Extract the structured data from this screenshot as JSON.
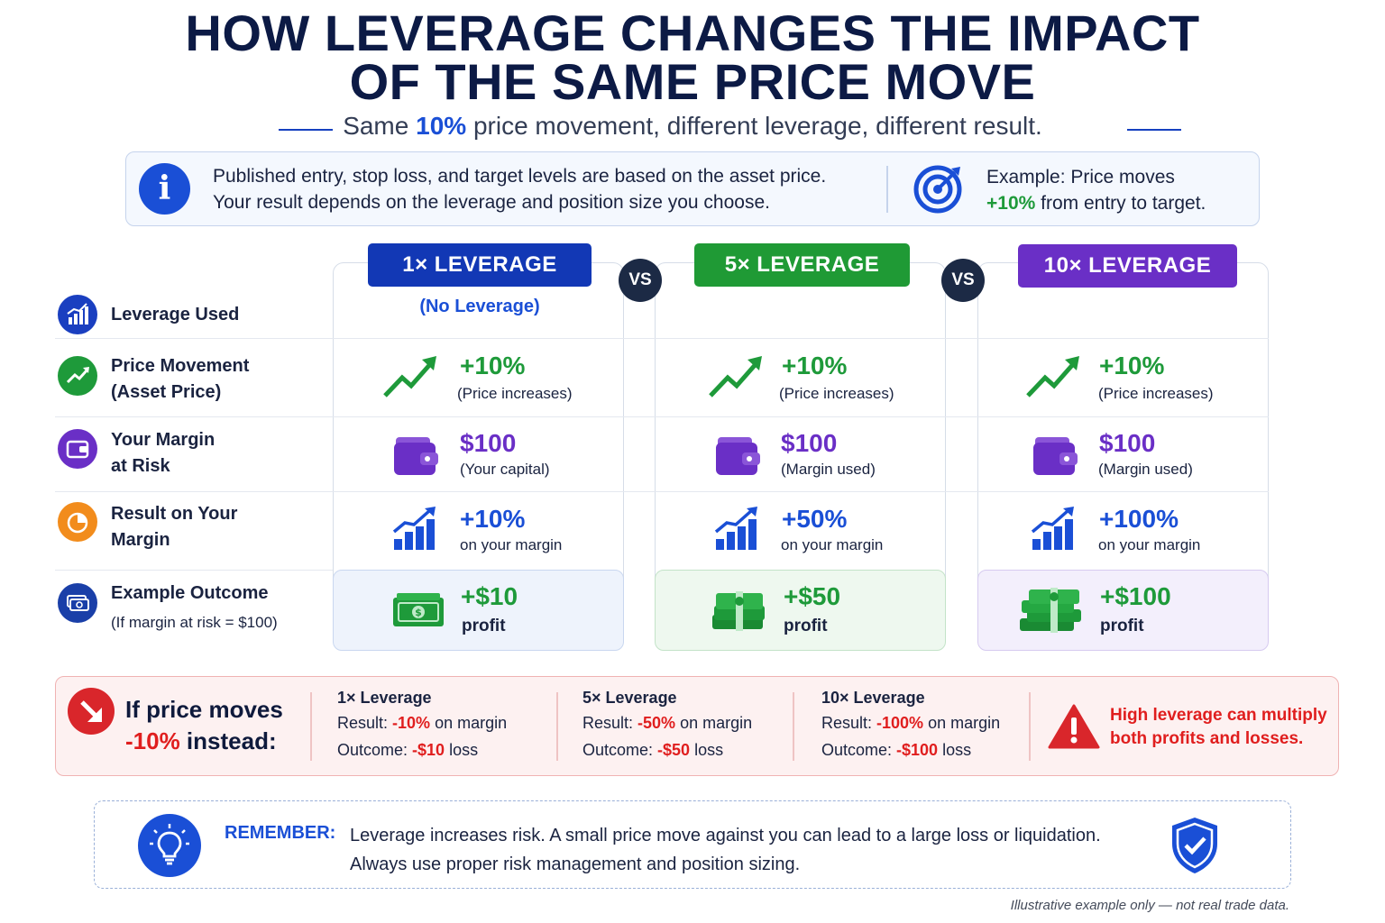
{
  "title_line1": "HOW LEVERAGE CHANGES THE IMPACT",
  "title_line2": "OF THE SAME PRICE MOVE",
  "subtitle": {
    "pre": "Same ",
    "highlight": "10%",
    "post": " price movement, different leverage, different result."
  },
  "info": {
    "line1": "Published entry, stop loss, and target levels are based on the asset price.",
    "line2": "Your result depends on the leverage and position size you choose.",
    "example_line1": "Example: Price moves",
    "example_highlight": "+10%",
    "example_line2_rest": " from entry to target."
  },
  "vs_label": "VS",
  "row_labels": {
    "leverage_used": "Leverage Used",
    "price_movement_1": "Price Movement",
    "price_movement_2": "(Asset Price)",
    "margin_1": "Your Margin",
    "margin_2": "at Risk",
    "result_1": "Result on Your",
    "result_2": "Margin",
    "outcome_1": "Example Outcome",
    "outcome_2": "(If margin at risk = $100)"
  },
  "columns": [
    {
      "header": "1× LEVERAGE",
      "color": "#1238b5",
      "leverage_note": "(No Leverage)",
      "price_value": "+10%",
      "price_note": "(Price increases)",
      "margin_value": "$100",
      "margin_note": "(Your capital)",
      "result_value": "+10%",
      "result_note": "on your margin",
      "outcome_value": "+$10",
      "outcome_note": "profit"
    },
    {
      "header": "5× LEVERAGE",
      "color": "#1f9a35",
      "leverage_note": "",
      "price_value": "+10%",
      "price_note": "(Price increases)",
      "margin_value": "$100",
      "margin_note": "(Margin used)",
      "result_value": "+50%",
      "result_note": "on your margin",
      "outcome_value": "+$50",
      "outcome_note": "profit"
    },
    {
      "header": "10× LEVERAGE",
      "color": "#6a2fc6",
      "leverage_note": "",
      "price_value": "+10%",
      "price_note": "(Price increases)",
      "margin_value": "$100",
      "margin_note": "(Margin used)",
      "result_value": "+100%",
      "result_note": "on your margin",
      "outcome_value": "+$100",
      "outcome_note": "profit"
    }
  ],
  "down": {
    "line1": "If price moves",
    "line2_highlight": "-10%",
    "line2_rest": " instead:",
    "result_prefix": "Result: ",
    "result_suffix": " on margin",
    "outcome_prefix": "Outcome: ",
    "outcome_suffix": " loss",
    "cols": [
      {
        "title": "1× Leverage",
        "result": "-10%",
        "outcome": "-$10"
      },
      {
        "title": "5× Leverage",
        "result": "-50%",
        "outcome": "-$50"
      },
      {
        "title": "10× Leverage",
        "result": "-100%",
        "outcome": "-$100"
      }
    ],
    "warning_line1": "High leverage can multiply",
    "warning_line2": "both profits and losses."
  },
  "remember": {
    "label": "REMEMBER:",
    "line1": "Leverage increases risk. A small price move against you can lead to a large loss or liquidation.",
    "line2": "Always use proper risk management and position sizing."
  },
  "footnote": "Illustrative example only — not real trade data.",
  "colors": {
    "navy": "#0c1a45",
    "blue": "#1a4fd6",
    "green": "#1e9a3a",
    "purple": "#6a2fc6",
    "orange": "#f28c1c",
    "red": "#e01e1e"
  }
}
